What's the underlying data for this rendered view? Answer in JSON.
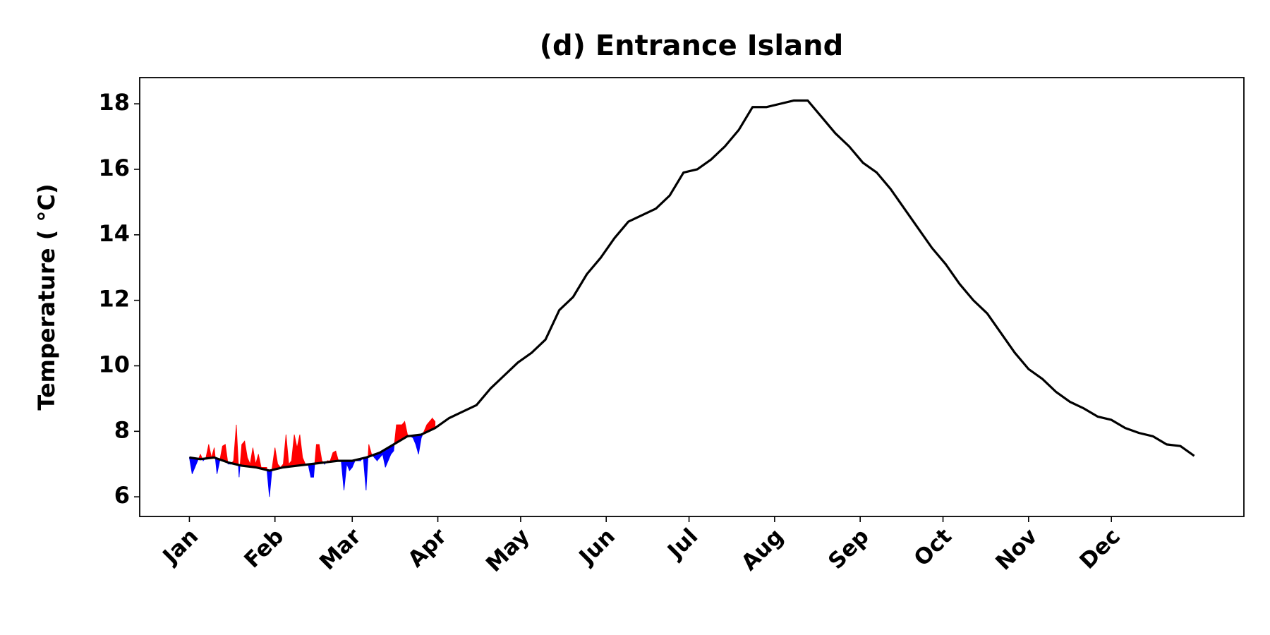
{
  "chart_data": {
    "type": "line",
    "title": "(d) Entrance Island",
    "y_label": "Temperature ( °C)",
    "xlim": [
      -17,
      383
    ],
    "ylim": [
      5.4,
      18.8
    ],
    "xticks": [
      {
        "value": 1,
        "label": "Jan"
      },
      {
        "value": 32,
        "label": "Feb"
      },
      {
        "value": 60,
        "label": "Mar"
      },
      {
        "value": 91,
        "label": "Apr"
      },
      {
        "value": 121,
        "label": "May"
      },
      {
        "value": 152,
        "label": "Jun"
      },
      {
        "value": 182,
        "label": "Jul"
      },
      {
        "value": 213,
        "label": "Aug"
      },
      {
        "value": 244,
        "label": "Sep"
      },
      {
        "value": 274,
        "label": "Oct"
      },
      {
        "value": 305,
        "label": "Nov"
      },
      {
        "value": 335,
        "label": "Dec"
      }
    ],
    "yticks": [
      6,
      8,
      10,
      12,
      14,
      16,
      18
    ],
    "series": [
      {
        "color": "#000000",
        "x": [
          1,
          5,
          10,
          15,
          20,
          25,
          30,
          35,
          40,
          45,
          50,
          55,
          60,
          65,
          70,
          75,
          80,
          85,
          90,
          95,
          100,
          105,
          110,
          115,
          120,
          125,
          130,
          135,
          140,
          145,
          150,
          155,
          160,
          165,
          170,
          175,
          180,
          185,
          190,
          195,
          200,
          205,
          210,
          215,
          220,
          225,
          230,
          235,
          240,
          245,
          250,
          255,
          260,
          265,
          270,
          275,
          280,
          285,
          290,
          295,
          300,
          305,
          310,
          315,
          320,
          325,
          330,
          335,
          340,
          345,
          350,
          355,
          360,
          365
        ],
        "values": [
          7.2,
          7.15,
          7.2,
          7.05,
          6.95,
          6.9,
          6.8,
          6.9,
          6.95,
          7.0,
          7.05,
          7.1,
          7.1,
          7.2,
          7.35,
          7.6,
          7.85,
          7.9,
          8.1,
          8.4,
          8.6,
          8.8,
          9.3,
          9.7,
          10.1,
          10.4,
          10.8,
          11.7,
          12.1,
          12.8,
          13.3,
          13.9,
          14.4,
          14.6,
          14.8,
          15.2,
          15.9,
          16.0,
          16.3,
          16.7,
          17.2,
          17.9,
          17.9,
          18.0,
          18.1,
          18.1,
          17.6,
          17.1,
          16.7,
          16.2,
          15.9,
          15.4,
          14.8,
          14.2,
          13.6,
          13.1,
          12.5,
          12.0,
          11.6,
          11.0,
          10.4,
          9.9,
          9.6,
          9.2,
          8.9,
          8.7,
          8.45,
          8.35,
          8.1,
          7.95,
          7.85,
          7.6,
          7.55,
          7.25
        ]
      },
      {
        "above_color": "#ff0000",
        "below_color": "#0000ff",
        "x": [
          1,
          2,
          3,
          4,
          5,
          6,
          7,
          8,
          9,
          10,
          11,
          12,
          13,
          14,
          15,
          16,
          17,
          18,
          19,
          20,
          21,
          22,
          23,
          24,
          25,
          26,
          27,
          28,
          29,
          30,
          31,
          32,
          33,
          34,
          35,
          36,
          37,
          38,
          39,
          40,
          41,
          42,
          43,
          44,
          45,
          46,
          47,
          48,
          49,
          50,
          51,
          52,
          53,
          54,
          55,
          56,
          57,
          58,
          59,
          60,
          61,
          62,
          63,
          64,
          65,
          66,
          67,
          68,
          69,
          70,
          71,
          72,
          73,
          74,
          75,
          76,
          77,
          78,
          79,
          80,
          81,
          82,
          83,
          84,
          85,
          86,
          87,
          88,
          89,
          90
        ],
        "values": [
          7.2,
          6.7,
          6.9,
          7.1,
          7.3,
          7.1,
          7.2,
          7.6,
          7.2,
          7.5,
          6.7,
          7.1,
          7.55,
          7.6,
          7.0,
          7.0,
          7.1,
          8.2,
          6.6,
          7.6,
          7.7,
          7.2,
          7.0,
          7.5,
          7.0,
          7.3,
          6.9,
          6.9,
          6.9,
          6.0,
          6.9,
          7.5,
          7.0,
          6.9,
          7.0,
          7.9,
          7.0,
          7.1,
          7.9,
          7.5,
          7.9,
          7.2,
          7.0,
          7.0,
          6.6,
          6.6,
          7.6,
          7.6,
          7.1,
          7.0,
          7.1,
          7.1,
          7.35,
          7.4,
          7.1,
          7.1,
          6.2,
          7.0,
          6.8,
          6.9,
          7.1,
          7.1,
          7.1,
          7.2,
          6.2,
          7.6,
          7.3,
          7.2,
          7.1,
          7.2,
          7.3,
          6.9,
          7.1,
          7.3,
          7.4,
          8.2,
          8.2,
          8.2,
          8.3,
          7.9,
          7.85,
          7.8,
          7.6,
          7.3,
          7.8,
          8.0,
          8.2,
          8.3,
          8.4,
          8.3
        ]
      }
    ]
  }
}
